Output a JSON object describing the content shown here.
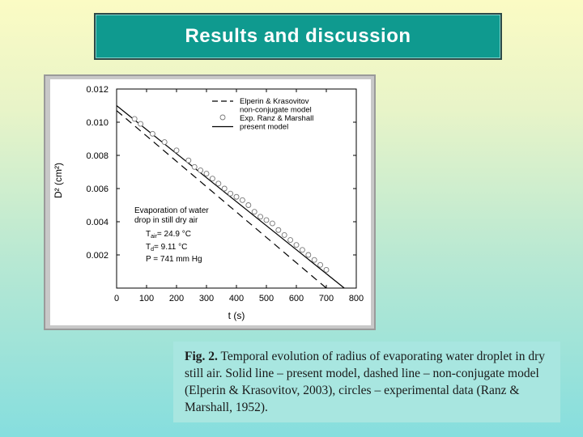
{
  "slide": {
    "title": "Results and discussion",
    "caption_label": "Fig. 2.",
    "caption_text": " Temporal evolution of radius of evaporating water droplet in dry still air. Solid line – present model, dashed line – non-conjugate model (Elperin & Krasovitov, 2003), circles – experimental data (Ranz & Marshall, 1952)."
  },
  "chart_data": {
    "type": "line",
    "xlabel": "t (s)",
    "ylabel": "D² (cm²)",
    "xlim": [
      0,
      800
    ],
    "ylim": [
      0,
      0.012
    ],
    "x_ticks": [
      "0",
      "100",
      "200",
      "300",
      "400",
      "500",
      "600",
      "700",
      "800"
    ],
    "y_ticks": [
      "0.002",
      "0.004",
      "0.006",
      "0.008",
      "0.010",
      "0.012"
    ],
    "legend_position": "top-right",
    "legend": [
      {
        "label": "Elperin & Krasovitov",
        "style": "dashed"
      },
      {
        "label": "non-conjugate model",
        "style": "none"
      },
      {
        "label": "Exp. Ranz & Marshall",
        "style": "circle"
      },
      {
        "label": "present model",
        "style": "solid"
      }
    ],
    "annotation": {
      "line1": "Evaporation of water",
      "line2": "drop in still dry air",
      "t_air": "T",
      "t_air_sub": "air",
      "t_air_val": "= 24.9 °C",
      "t_d": "T",
      "t_d_sub": "d",
      "t_d_val": "= 9.11 °C",
      "p": "P    = 741 mm Hg"
    },
    "series": [
      {
        "name": "Elperin & Krasovitov non-conjugate model",
        "style": "dashed",
        "x": [
          0,
          700
        ],
        "y": [
          0.0107,
          0.0
        ]
      },
      {
        "name": "present model",
        "style": "solid",
        "x": [
          0,
          760
        ],
        "y": [
          0.011,
          0.0
        ]
      },
      {
        "name": "Exp. Ranz & Marshall",
        "style": "circle",
        "x": [
          60,
          80,
          120,
          160,
          200,
          240,
          260,
          280,
          300,
          320,
          340,
          360,
          380,
          400,
          420,
          440,
          460,
          480,
          500,
          520,
          540,
          560,
          580,
          600,
          620,
          640,
          660,
          680,
          700
        ],
        "y": [
          0.0102,
          0.0099,
          0.0093,
          0.0088,
          0.0083,
          0.0077,
          0.0073,
          0.0071,
          0.0069,
          0.0066,
          0.0063,
          0.006,
          0.0057,
          0.0055,
          0.0053,
          0.005,
          0.0046,
          0.0043,
          0.0041,
          0.0039,
          0.0035,
          0.0032,
          0.0029,
          0.0026,
          0.0023,
          0.002,
          0.0017,
          0.0014,
          0.0011
        ]
      }
    ]
  }
}
